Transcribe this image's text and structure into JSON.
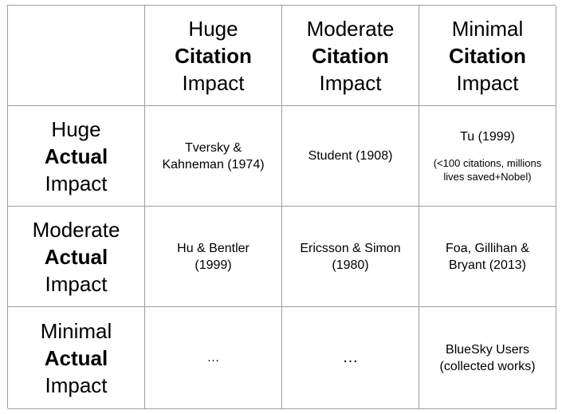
{
  "columns": [
    {
      "line1": "Huge",
      "line2": "Citation",
      "line3": "Impact"
    },
    {
      "line1": "Moderate",
      "line2": "Citation",
      "line3": "Impact"
    },
    {
      "line1": "Minimal",
      "line2": "Citation",
      "line3": "Impact"
    }
  ],
  "rows": [
    {
      "line1": "Huge",
      "line2": "Actual",
      "line3": "Impact",
      "cells": [
        {
          "l1": "Tversky &",
          "l2": "Kahneman (1974)"
        },
        {
          "l1": "Student (1908)"
        },
        {
          "l1": "Tu (1999)",
          "note1": "(<100 citations, millions",
          "note2": "lives saved+Nobel)"
        }
      ]
    },
    {
      "line1": "Moderate",
      "line2": "Actual",
      "line3": "Impact",
      "cells": [
        {
          "l1": "Hu & Bentler",
          "l2": "(1999)"
        },
        {
          "l1": "Ericsson & Simon",
          "l2": "(1980)"
        },
        {
          "l1": "Foa, Gillihan &",
          "l2": "Bryant (2013)"
        }
      ]
    },
    {
      "line1": "Minimal",
      "line2": "Actual",
      "line3": "Impact",
      "cells": [
        {
          "l1": "…"
        },
        {
          "l1": "…"
        },
        {
          "l1": "BlueSky Users",
          "l2": "(collected works)"
        }
      ]
    }
  ]
}
